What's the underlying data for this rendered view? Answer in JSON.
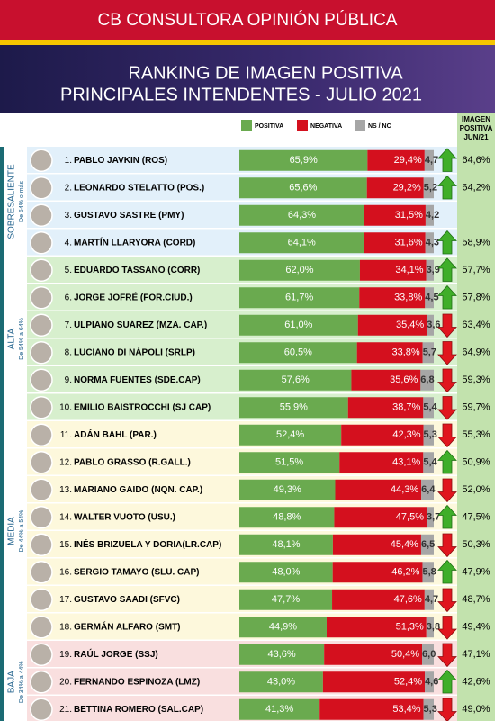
{
  "header": "CB CONSULTORA OPINIÓN PÚBLICA",
  "title": "RANKING DE IMAGEN POSITIVA",
  "subtitle": "PRINCIPALES INTENDENTES - JULIO 2021",
  "legend": [
    {
      "name": "POSITIVA",
      "color": "#6aaa4f"
    },
    {
      "name": "NEGATIVA",
      "color": "#d4101e"
    },
    {
      "name": "NS / NC",
      "color": "#a6a6a6"
    }
  ],
  "previous_header": [
    "IMAGEN",
    "POSITIVA",
    "JUN/21"
  ],
  "xlim": [
    0,
    100
  ],
  "groups": [
    {
      "label": "SOBRESALIENTE",
      "range": "De 64% o más",
      "color": "#e2f0fa",
      "rows": [
        {
          "rank": "1.",
          "name": "PABLO JAVKIN (ROS)",
          "positive": 65.9,
          "positive_label": "65,9%",
          "negative": 29.4,
          "negative_label": "29,4%",
          "nsnc": 4.7,
          "nsnc_label": "4,7",
          "previous_label": "64,6%",
          "trend": "up"
        },
        {
          "rank": "2.",
          "name": "LEONARDO STELATTO (POS.)",
          "positive": 65.6,
          "positive_label": "65,6%",
          "negative": 29.2,
          "negative_label": "29,2%",
          "nsnc": 5.2,
          "nsnc_label": "5,2",
          "previous_label": "64,2%",
          "trend": "up"
        },
        {
          "rank": "3.",
          "name": "GUSTAVO SASTRE (PMY)",
          "positive": 64.3,
          "positive_label": "64,3%",
          "negative": 31.5,
          "negative_label": "31,5%",
          "nsnc": 4.2,
          "nsnc_label": "4,2"
        },
        {
          "rank": "4.",
          "name": "MARTÍN LLARYORA (CORD)",
          "positive": 64.1,
          "positive_label": "64,1%",
          "negative": 31.6,
          "negative_label": "31,6%",
          "nsnc": 4.3,
          "nsnc_label": "4,3",
          "previous_label": "58,9%",
          "trend": "up"
        }
      ]
    },
    {
      "label": "ALTA",
      "range": "De 54% a 64%",
      "color": "#d7efcd",
      "rows": [
        {
          "rank": "5.",
          "name": "EDUARDO TASSANO (CORR)",
          "positive": 62.0,
          "positive_label": "62,0%",
          "negative": 34.1,
          "negative_label": "34,1%",
          "nsnc": 3.9,
          "nsnc_label": "3,9",
          "previous_label": "57,7%",
          "trend": "up"
        },
        {
          "rank": "6.",
          "name": "JORGE JOFRÉ (FOR.CIUD.)",
          "positive": 61.7,
          "positive_label": "61,7%",
          "negative": 33.8,
          "negative_label": "33,8%",
          "nsnc": 4.5,
          "nsnc_label": "4,5",
          "previous_label": "57,8%",
          "trend": "up"
        },
        {
          "rank": "7.",
          "name": "ULPIANO SUÁREZ (MZA. CAP.)",
          "positive": 61.0,
          "positive_label": "61,0%",
          "negative": 35.4,
          "negative_label": "35,4%",
          "nsnc": 3.6,
          "nsnc_label": "3,6",
          "previous_label": "63,4%",
          "trend": "down"
        },
        {
          "rank": "8.",
          "name": "LUCIANO DI NÁPOLI (SRLP)",
          "positive": 60.5,
          "positive_label": "60,5%",
          "negative": 33.8,
          "negative_label": "33,8%",
          "nsnc": 5.7,
          "nsnc_label": "5,7",
          "previous_label": "64,9%",
          "trend": "down"
        },
        {
          "rank": "9.",
          "name": "NORMA FUENTES (SDE.CAP)",
          "positive": 57.6,
          "positive_label": "57,6%",
          "negative": 35.6,
          "negative_label": "35,6%",
          "nsnc": 6.8,
          "nsnc_label": "6,8",
          "previous_label": "59,3%",
          "trend": "down"
        },
        {
          "rank": "10.",
          "name": "EMILIO BAISTROCCHI (SJ CAP)",
          "positive": 55.9,
          "positive_label": "55,9%",
          "negative": 38.7,
          "negative_label": "38,7%",
          "nsnc": 5.4,
          "nsnc_label": "5,4",
          "previous_label": "59,7%",
          "trend": "down"
        }
      ]
    },
    {
      "label": "MEDIA",
      "range": "De 44% a 54%",
      "color": "#fdf8dc",
      "rows": [
        {
          "rank": "11.",
          "name": "ADÁN BAHL (PAR.)",
          "positive": 52.4,
          "positive_label": "52,4%",
          "negative": 42.3,
          "negative_label": "42,3%",
          "nsnc": 5.3,
          "nsnc_label": "5,3",
          "previous_label": "55,3%",
          "trend": "down"
        },
        {
          "rank": "12.",
          "name": "PABLO GRASSO (R.GALL.)",
          "positive": 51.5,
          "positive_label": "51,5%",
          "negative": 43.1,
          "negative_label": "43,1%",
          "nsnc": 5.4,
          "nsnc_label": "5,4",
          "previous_label": "50,9%",
          "trend": "up"
        },
        {
          "rank": "13.",
          "name": "MARIANO GAIDO (NQN. CAP.)",
          "positive": 49.3,
          "positive_label": "49,3%",
          "negative": 44.3,
          "negative_label": "44,3%",
          "nsnc": 6.4,
          "nsnc_label": "6,4",
          "previous_label": "52,0%",
          "trend": "down"
        },
        {
          "rank": "14.",
          "name": "WALTER VUOTO (USU.)",
          "positive": 48.8,
          "positive_label": "48,8%",
          "negative": 47.5,
          "negative_label": "47,5%",
          "nsnc": 3.7,
          "nsnc_label": "3,7",
          "previous_label": "47,5%",
          "trend": "up"
        },
        {
          "rank": "15.",
          "name": "INÉS BRIZUELA Y DORIA(LR.CAP)",
          "positive": 48.1,
          "positive_label": "48,1%",
          "negative": 45.4,
          "negative_label": "45,4%",
          "nsnc": 6.5,
          "nsnc_label": "6,5",
          "previous_label": "50,3%",
          "trend": "down"
        },
        {
          "rank": "16.",
          "name": "SERGIO TAMAYO (SLU. CAP)",
          "positive": 48.0,
          "positive_label": "48,0%",
          "negative": 46.2,
          "negative_label": "46,2%",
          "nsnc": 5.8,
          "nsnc_label": "5,8",
          "previous_label": "47,9%",
          "trend": "up"
        },
        {
          "rank": "17.",
          "name": "GUSTAVO SAADI (SFVC)",
          "positive": 47.7,
          "positive_label": "47,7%",
          "negative": 47.6,
          "negative_label": "47,6%",
          "nsnc": 4.7,
          "nsnc_label": "4,7",
          "previous_label": "48,7%",
          "trend": "down"
        },
        {
          "rank": "18.",
          "name": "GERMÁN ALFARO (SMT)",
          "positive": 44.9,
          "positive_label": "44,9%",
          "negative": 51.3,
          "negative_label": "51,3%",
          "nsnc": 3.8,
          "nsnc_label": "3,8",
          "previous_label": "49,4%",
          "trend": "down"
        }
      ]
    },
    {
      "label": "BAJA",
      "range": "De 34% a 44%",
      "color": "#f9dfdf",
      "rows": [
        {
          "rank": "19.",
          "name": "RAÚL JORGE (SSJ)",
          "positive": 43.6,
          "positive_label": "43,6%",
          "negative": 50.4,
          "negative_label": "50,4%",
          "nsnc": 6.0,
          "nsnc_label": "6,0",
          "previous_label": "47,1%",
          "trend": "down"
        },
        {
          "rank": "20.",
          "name": "FERNANDO ESPINOZA (LMZ)",
          "positive": 43.0,
          "positive_label": "43,0%",
          "negative": 52.4,
          "negative_label": "52,4%",
          "nsnc": 4.6,
          "nsnc_label": "4,6",
          "previous_label": "42,6%",
          "trend": "up"
        },
        {
          "rank": "21.",
          "name": "BETTINA ROMERO (SAL.CAP)",
          "positive": 41.3,
          "positive_label": "41,3%",
          "negative": 53.4,
          "negative_label": "53,4%",
          "nsnc": 5.3,
          "nsnc_label": "5,3",
          "previous_label": "49,0%",
          "trend": "down"
        }
      ]
    }
  ]
}
